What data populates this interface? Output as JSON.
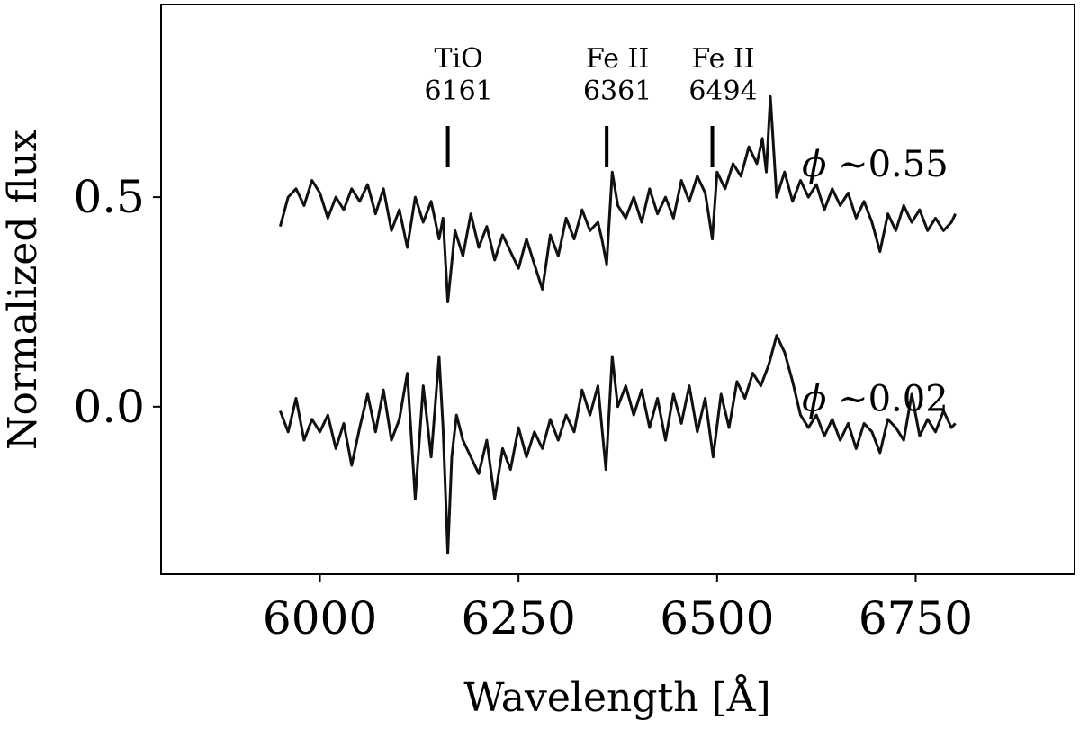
{
  "chart_data": {
    "type": "line",
    "title": "",
    "xlabel": "Wavelength [Å]",
    "ylabel": "Normalized flux",
    "xlim": [
      5800,
      6950
    ],
    "ylim": [
      -0.4,
      0.96
    ],
    "xticks": [
      6000,
      6250,
      6500,
      6750
    ],
    "xtick_labels": [
      "6000",
      "6250",
      "6500",
      "6750"
    ],
    "yticks": [
      0.0,
      0.5
    ],
    "ytick_labels": [
      "0.0",
      "0.5"
    ],
    "grid": false,
    "line_color": "#111111",
    "line_annotations": [
      {
        "species": "TiO",
        "wavelength_label": "6161",
        "x": 6161
      },
      {
        "species": "Fe II",
        "wavelength_label": "6361",
        "x": 6361
      },
      {
        "species": "Fe II",
        "wavelength_label": "6494",
        "x": 6494
      }
    ],
    "series": [
      {
        "label": "ϕ ∼0.55",
        "phi": "ϕ",
        "phase_text": " ∼0.55",
        "x": [
          5950,
          5960,
          5970,
          5980,
          5990,
          6000,
          6010,
          6020,
          6030,
          6040,
          6050,
          6060,
          6070,
          6080,
          6090,
          6100,
          6110,
          6120,
          6130,
          6140,
          6150,
          6155,
          6161,
          6170,
          6180,
          6190,
          6200,
          6210,
          6220,
          6230,
          6240,
          6250,
          6260,
          6270,
          6280,
          6290,
          6300,
          6310,
          6320,
          6330,
          6340,
          6350,
          6355,
          6361,
          6368,
          6375,
          6385,
          6395,
          6405,
          6415,
          6425,
          6435,
          6445,
          6455,
          6465,
          6475,
          6485,
          6490,
          6494,
          6500,
          6510,
          6520,
          6530,
          6540,
          6550,
          6557,
          6562,
          6567,
          6575,
          6585,
          6595,
          6605,
          6615,
          6625,
          6635,
          6645,
          6655,
          6665,
          6675,
          6685,
          6695,
          6705,
          6715,
          6725,
          6735,
          6745,
          6755,
          6765,
          6775,
          6785,
          6795,
          6800
        ],
        "y": [
          0.43,
          0.5,
          0.52,
          0.48,
          0.54,
          0.51,
          0.45,
          0.5,
          0.47,
          0.52,
          0.49,
          0.53,
          0.46,
          0.52,
          0.42,
          0.47,
          0.38,
          0.5,
          0.44,
          0.49,
          0.4,
          0.45,
          0.25,
          0.42,
          0.36,
          0.46,
          0.38,
          0.43,
          0.35,
          0.41,
          0.37,
          0.33,
          0.4,
          0.34,
          0.28,
          0.41,
          0.36,
          0.45,
          0.4,
          0.47,
          0.42,
          0.44,
          0.4,
          0.34,
          0.56,
          0.48,
          0.45,
          0.5,
          0.44,
          0.52,
          0.46,
          0.5,
          0.45,
          0.54,
          0.49,
          0.55,
          0.51,
          0.45,
          0.4,
          0.56,
          0.52,
          0.58,
          0.55,
          0.62,
          0.58,
          0.64,
          0.56,
          0.74,
          0.5,
          0.56,
          0.49,
          0.54,
          0.5,
          0.53,
          0.47,
          0.52,
          0.48,
          0.51,
          0.45,
          0.49,
          0.44,
          0.37,
          0.46,
          0.42,
          0.48,
          0.44,
          0.47,
          0.42,
          0.45,
          0.42,
          0.44,
          0.46
        ]
      },
      {
        "label": "ϕ ∼0.02",
        "phi": "ϕ",
        "phase_text": " ∼0.02",
        "x": [
          5950,
          5960,
          5970,
          5980,
          5990,
          6000,
          6010,
          6020,
          6030,
          6040,
          6050,
          6060,
          6070,
          6080,
          6090,
          6100,
          6110,
          6120,
          6130,
          6140,
          6150,
          6155,
          6161,
          6166,
          6172,
          6180,
          6190,
          6200,
          6210,
          6220,
          6230,
          6240,
          6250,
          6260,
          6270,
          6280,
          6290,
          6300,
          6310,
          6320,
          6330,
          6340,
          6350,
          6360,
          6368,
          6375,
          6385,
          6395,
          6405,
          6415,
          6425,
          6435,
          6445,
          6455,
          6465,
          6475,
          6485,
          6495,
          6505,
          6515,
          6525,
          6535,
          6545,
          6555,
          6565,
          6575,
          6585,
          6595,
          6605,
          6615,
          6625,
          6635,
          6645,
          6655,
          6665,
          6675,
          6685,
          6695,
          6705,
          6715,
          6725,
          6735,
          6745,
          6755,
          6765,
          6775,
          6785,
          6795,
          6800
        ],
        "y": [
          -0.01,
          -0.06,
          0.02,
          -0.08,
          -0.03,
          -0.06,
          -0.02,
          -0.1,
          -0.04,
          -0.14,
          -0.05,
          0.03,
          -0.06,
          0.04,
          -0.08,
          -0.03,
          0.08,
          -0.22,
          0.05,
          -0.12,
          0.12,
          -0.05,
          -0.35,
          -0.12,
          -0.02,
          -0.08,
          -0.12,
          -0.16,
          -0.08,
          -0.22,
          -0.1,
          -0.15,
          -0.05,
          -0.12,
          -0.06,
          -0.1,
          -0.03,
          -0.08,
          -0.02,
          -0.06,
          0.04,
          -0.02,
          0.05,
          -0.15,
          0.12,
          0.0,
          0.05,
          -0.02,
          0.04,
          -0.05,
          0.02,
          -0.08,
          0.03,
          -0.04,
          0.05,
          -0.06,
          0.02,
          -0.12,
          0.03,
          -0.05,
          0.06,
          0.02,
          0.08,
          0.05,
          0.1,
          0.17,
          0.13,
          0.06,
          -0.02,
          -0.05,
          -0.02,
          -0.07,
          -0.03,
          -0.08,
          -0.04,
          -0.1,
          -0.04,
          -0.06,
          -0.11,
          -0.03,
          -0.05,
          -0.08,
          0.03,
          -0.07,
          -0.03,
          -0.06,
          -0.01,
          -0.05,
          -0.04
        ]
      }
    ],
    "phase_label_x": 6600,
    "phase_label_offsets": [
      0.12,
      0.06
    ]
  }
}
